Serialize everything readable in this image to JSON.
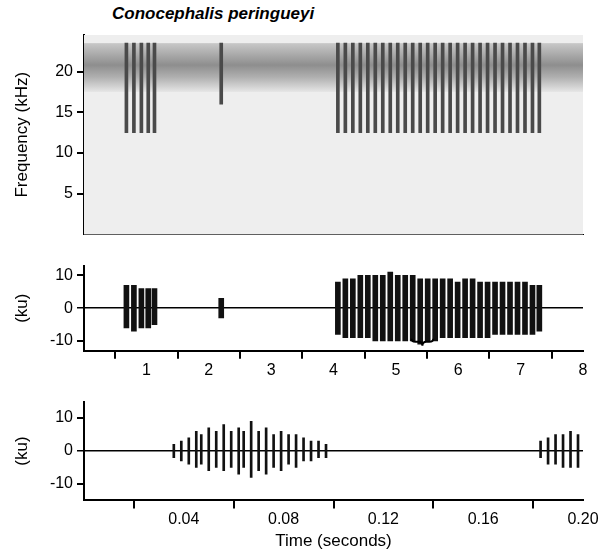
{
  "chart_data": [
    {
      "type": "bar",
      "title": "Conocephalis peringueyi",
      "y_label": "Frequency (kHz)",
      "xlim": [
        0,
        8
      ],
      "ylim": [
        0,
        24.5
      ],
      "yticks": [
        5,
        10,
        15,
        20
      ],
      "tick_labels": "y",
      "noise_band": [
        17.5,
        23.5
      ],
      "color": "#4a4a4a",
      "x": [
        0.68,
        0.8,
        0.92,
        1.03,
        1.13,
        2.2,
        4.07,
        4.19,
        4.31,
        4.43,
        4.55,
        4.67,
        4.79,
        4.91,
        5.03,
        5.15,
        5.27,
        5.39,
        5.51,
        5.63,
        5.75,
        5.87,
        5.99,
        6.11,
        6.23,
        6.35,
        6.47,
        6.59,
        6.71,
        6.83,
        6.95,
        7.07,
        7.19,
        7.3
      ],
      "values": [
        [
          12.5,
          23.5
        ],
        [
          12.5,
          23.5
        ],
        [
          12.5,
          23.5
        ],
        [
          12.5,
          23.5
        ],
        [
          12.5,
          23.5
        ],
        [
          16,
          23.5
        ],
        [
          12.5,
          23.5
        ],
        [
          12.5,
          23.5
        ],
        [
          12.5,
          23.5
        ],
        [
          12.5,
          23.5
        ],
        [
          12.5,
          23.5
        ],
        [
          12.5,
          23.5
        ],
        [
          12.5,
          23.5
        ],
        [
          12.5,
          23.5
        ],
        [
          12.5,
          23.5
        ],
        [
          12.5,
          23.5
        ],
        [
          12.5,
          23.5
        ],
        [
          12.5,
          23.5
        ],
        [
          12.5,
          23.5
        ],
        [
          12.5,
          23.5
        ],
        [
          12.5,
          23.5
        ],
        [
          12.5,
          23.5
        ],
        [
          12.5,
          23.5
        ],
        [
          12.5,
          23.5
        ],
        [
          12.5,
          23.5
        ],
        [
          12.5,
          23.5
        ],
        [
          12.5,
          23.5
        ],
        [
          12.5,
          23.5
        ],
        [
          12.5,
          23.5
        ],
        [
          12.5,
          23.5
        ],
        [
          12.5,
          23.5
        ],
        [
          12.5,
          23.5
        ],
        [
          12.5,
          23.5
        ],
        [
          12.5,
          23.5
        ]
      ]
    },
    {
      "type": "bar",
      "y_label": "(ku)",
      "xlim": [
        0,
        8
      ],
      "xticks": [
        1,
        2,
        3,
        4,
        5,
        6,
        7,
        8
      ],
      "ylim": [
        -13,
        13
      ],
      "yticks": [
        -10,
        0,
        10
      ],
      "zoom_bracket": [
        5.25,
        5.6
      ],
      "color": "#111111",
      "x": [
        0.68,
        0.8,
        0.92,
        1.03,
        1.13,
        2.2,
        4.07,
        4.19,
        4.31,
        4.43,
        4.55,
        4.67,
        4.79,
        4.91,
        5.03,
        5.15,
        5.27,
        5.39,
        5.51,
        5.63,
        5.75,
        5.87,
        5.99,
        6.11,
        6.23,
        6.35,
        6.47,
        6.59,
        6.71,
        6.83,
        6.95,
        7.07,
        7.19,
        7.3
      ],
      "values": [
        [
          -6,
          7
        ],
        [
          -7,
          7
        ],
        [
          -6,
          6
        ],
        [
          -6,
          6
        ],
        [
          -5,
          6
        ],
        [
          -3,
          3
        ],
        [
          -8,
          8
        ],
        [
          -9,
          9
        ],
        [
          -9,
          9
        ],
        [
          -9,
          10
        ],
        [
          -9,
          10
        ],
        [
          -10,
          10
        ],
        [
          -10,
          10
        ],
        [
          -10,
          11
        ],
        [
          -10,
          10
        ],
        [
          -10,
          10
        ],
        [
          -10,
          10
        ],
        [
          -11,
          9
        ],
        [
          -10,
          9
        ],
        [
          -10,
          9
        ],
        [
          -9,
          9
        ],
        [
          -9,
          9
        ],
        [
          -9,
          8
        ],
        [
          -9,
          9
        ],
        [
          -9,
          9
        ],
        [
          -9,
          8
        ],
        [
          -9,
          8
        ],
        [
          -8,
          8
        ],
        [
          -8,
          8
        ],
        [
          -8,
          8
        ],
        [
          -8,
          8
        ],
        [
          -8,
          8
        ],
        [
          -8,
          7
        ],
        [
          -7,
          7
        ]
      ]
    },
    {
      "type": "bar",
      "y_label": "(ku)",
      "x_label": "Time (seconds)",
      "xlim": [
        0,
        0.2
      ],
      "xticks": [
        0.04,
        0.08,
        0.12,
        0.16,
        {
          "value": 0.2,
          "label": "0.20"
        }
      ],
      "ylim": [
        -15,
        15
      ],
      "yticks": [
        -10,
        0,
        10
      ],
      "color": "#111111",
      "x": [
        0.036,
        0.039,
        0.042,
        0.045,
        0.047,
        0.05,
        0.053,
        0.056,
        0.059,
        0.062,
        0.064,
        0.067,
        0.07,
        0.073,
        0.076,
        0.079,
        0.082,
        0.085,
        0.088,
        0.091,
        0.094,
        0.097,
        0.183,
        0.186,
        0.189,
        0.192,
        0.195,
        0.198
      ],
      "values": [
        [
          -2,
          2
        ],
        [
          -3,
          3
        ],
        [
          -4,
          4
        ],
        [
          -5,
          6
        ],
        [
          -4,
          5
        ],
        [
          -6,
          7
        ],
        [
          -5,
          6
        ],
        [
          -6,
          8
        ],
        [
          -5,
          6
        ],
        [
          -7,
          7
        ],
        [
          -5,
          6
        ],
        [
          -8,
          9
        ],
        [
          -6,
          6
        ],
        [
          -7,
          7
        ],
        [
          -5,
          5
        ],
        [
          -6,
          6
        ],
        [
          -4,
          5
        ],
        [
          -5,
          5
        ],
        [
          -3,
          4
        ],
        [
          -3,
          3
        ],
        [
          -2,
          3
        ],
        [
          -2,
          2
        ],
        [
          -2,
          3
        ],
        [
          -4,
          4
        ],
        [
          -4,
          5
        ],
        [
          -5,
          5
        ],
        [
          -5,
          6
        ],
        [
          -5,
          5
        ]
      ]
    }
  ]
}
